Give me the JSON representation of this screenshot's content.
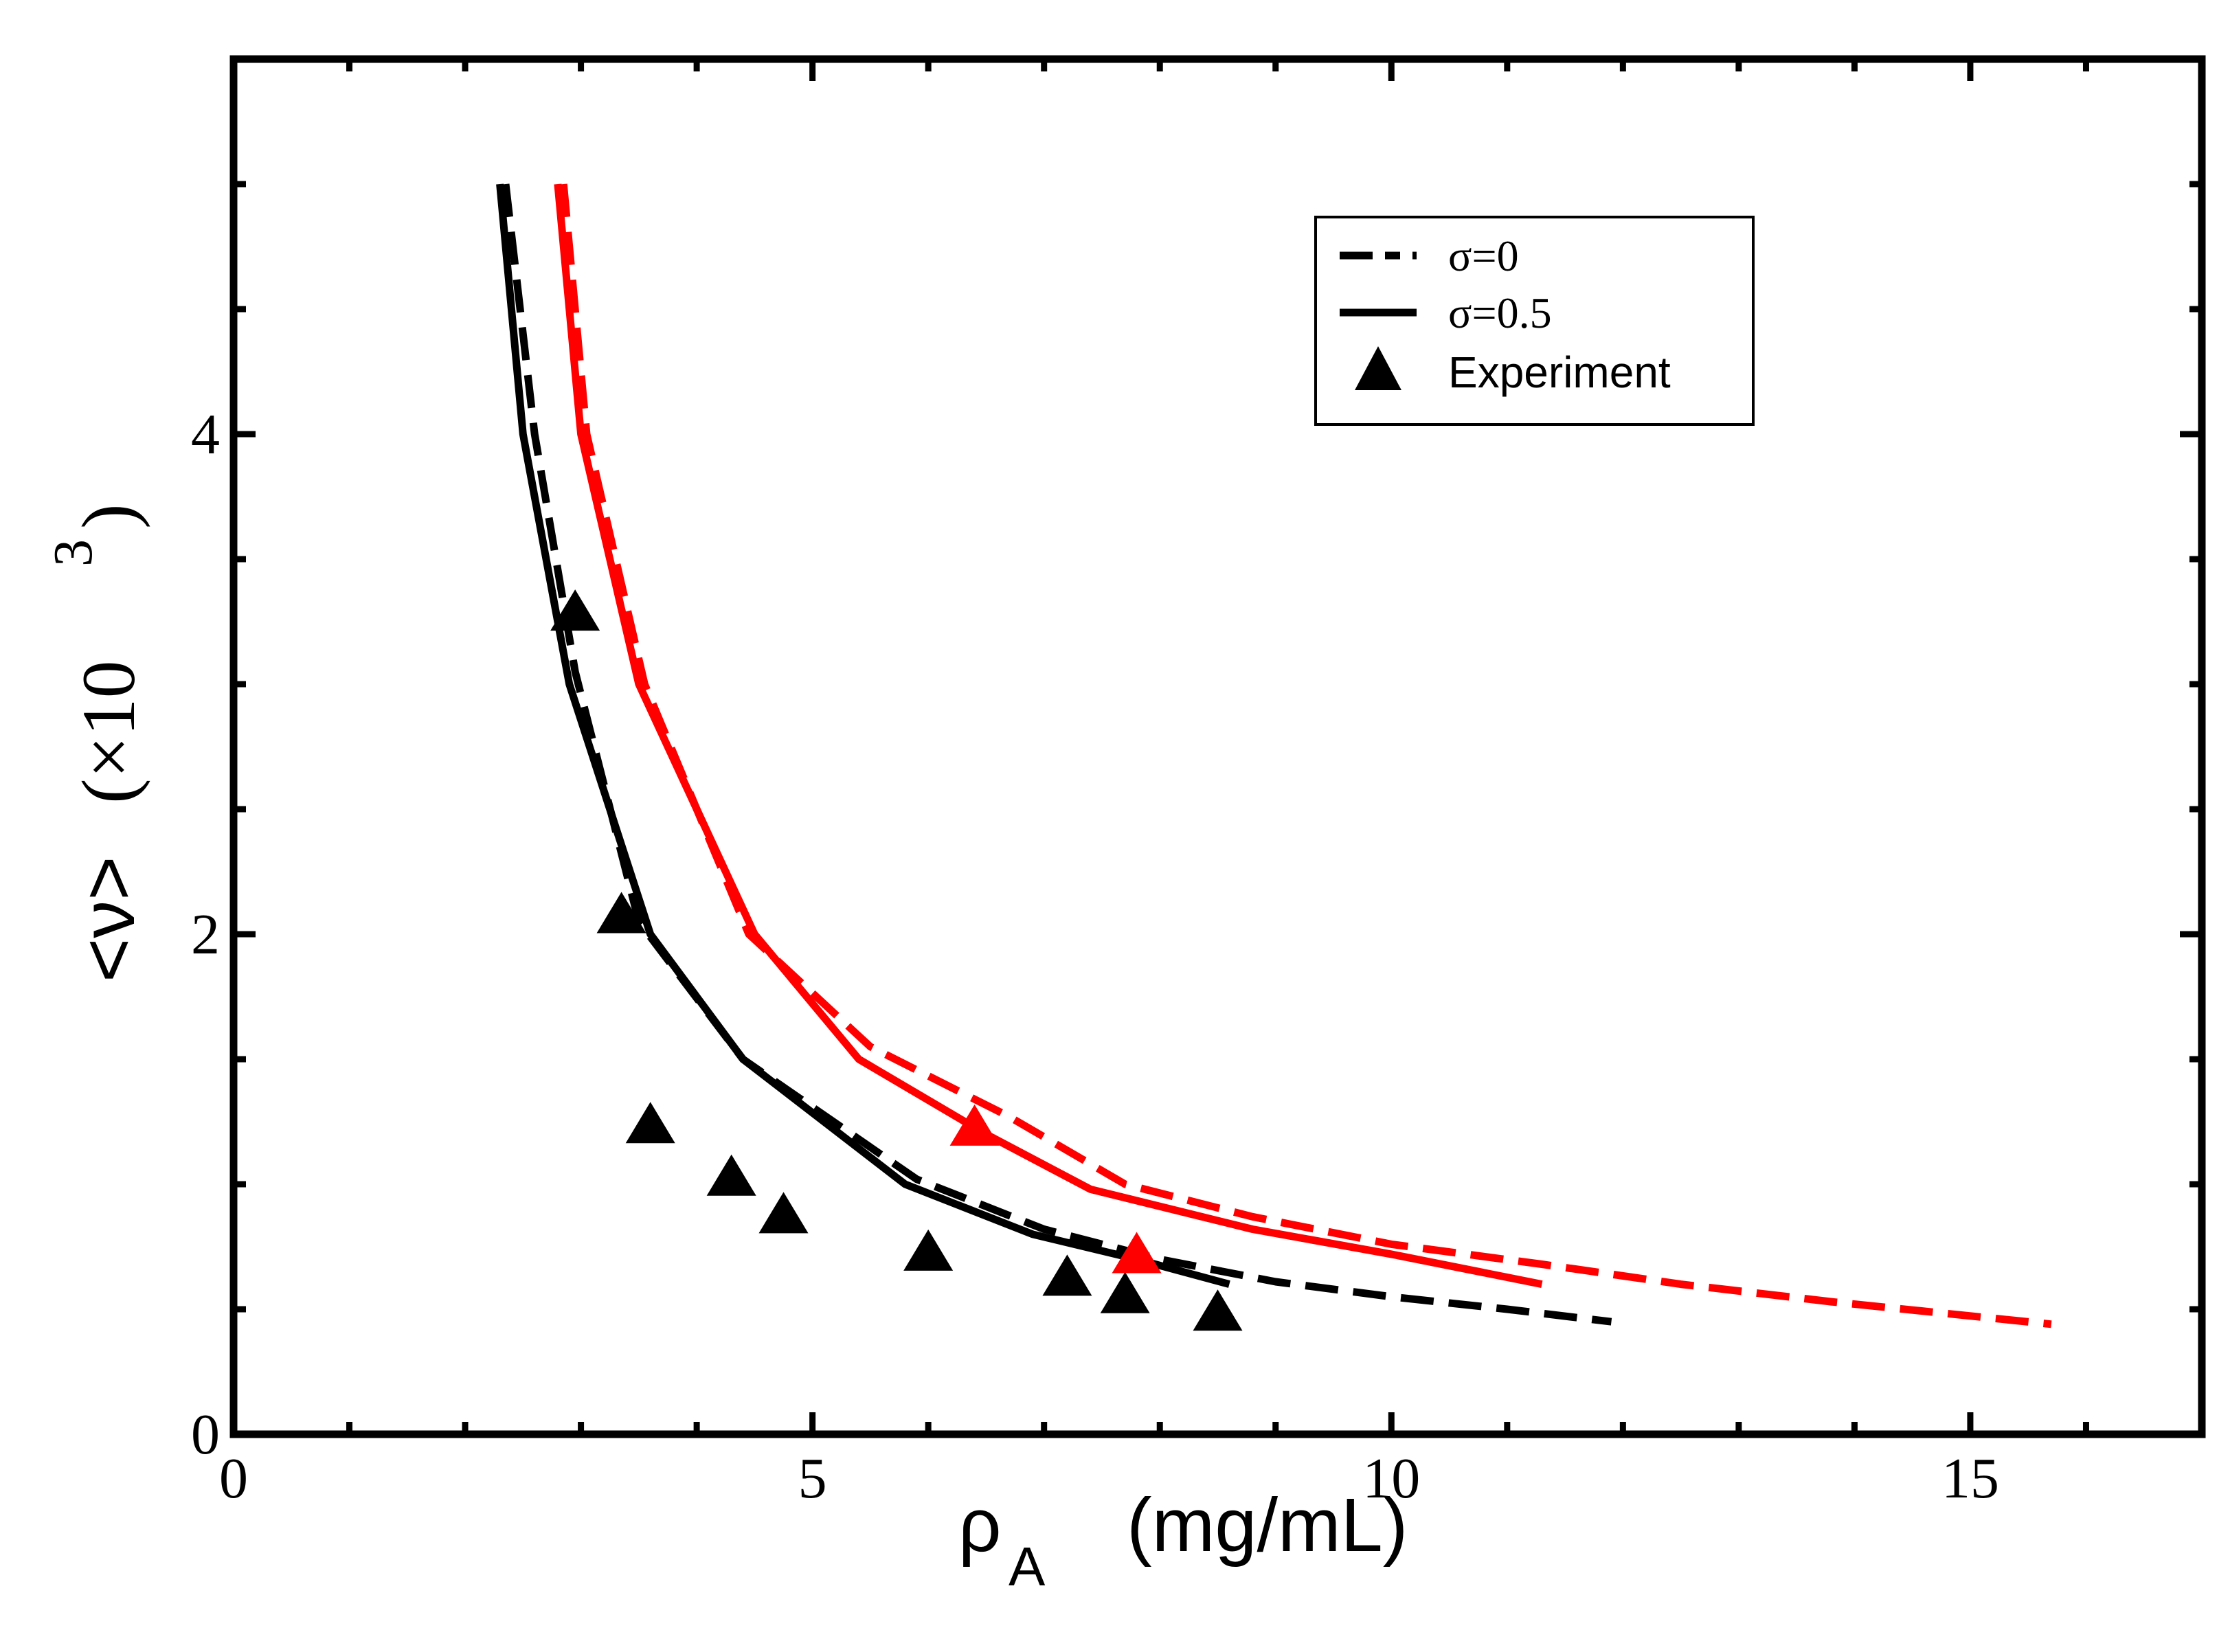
{
  "chart_data": {
    "type": "line",
    "title": "",
    "xlabel": {
      "symbol": "ρ",
      "subscript": "A",
      "units": "(mg/mL)"
    },
    "ylabel": {
      "symbol": "<ν>",
      "scale": "(×10",
      "scale_power": "3",
      "scale_close": ")"
    },
    "xlim": [
      0,
      17
    ],
    "ylim": [
      0,
      5.5
    ],
    "x_ticks": [
      0,
      5,
      10,
      15
    ],
    "x_tick_labels": [
      "0",
      "5",
      "10",
      "15"
    ],
    "y_ticks": [
      0,
      2,
      4
    ],
    "y_tick_labels": [
      "0",
      "2",
      "4"
    ],
    "x_minor_step": 1,
    "y_minor_step": 0.5,
    "grid": false,
    "legend": {
      "position": "top-right",
      "entries": [
        {
          "label": "σ=0",
          "style": "dashed"
        },
        {
          "label": "σ=0.5",
          "style": "solid"
        },
        {
          "label": "Experiment",
          "style": "triangle"
        }
      ]
    },
    "colors": {
      "black": "#000000",
      "red": "#ff0000"
    },
    "series": [
      {
        "name": "σ=0 (black)",
        "color": "#000000",
        "style": "dashed",
        "x": [
          2.35,
          2.6,
          2.95,
          3.5,
          4.4,
          5.9,
          7.0,
          8.0,
          9.0,
          10.0,
          11.0,
          11.9
        ],
        "y": [
          5.0,
          4.0,
          3.05,
          2.05,
          1.5,
          1.02,
          0.82,
          0.7,
          0.61,
          0.55,
          0.5,
          0.45
        ]
      },
      {
        "name": "σ=0.5 (black)",
        "color": "#000000",
        "style": "solid",
        "x": [
          2.3,
          2.5,
          2.9,
          3.6,
          4.4,
          5.8,
          6.9,
          7.8,
          8.6
        ],
        "y": [
          5.0,
          4.0,
          3.0,
          2.0,
          1.5,
          1.0,
          0.8,
          0.7,
          0.6
        ]
      },
      {
        "name": "σ=0 (red)",
        "color": "#ff0000",
        "style": "dashed",
        "x": [
          2.85,
          3.05,
          3.55,
          4.45,
          5.5,
          6.7,
          7.7,
          8.8,
          10.0,
          11.3,
          12.5,
          13.8,
          15.7
        ],
        "y": [
          5.0,
          4.0,
          3.0,
          2.0,
          1.55,
          1.27,
          1.0,
          0.87,
          0.76,
          0.68,
          0.6,
          0.53,
          0.44
        ]
      },
      {
        "name": "σ=0.5 (red)",
        "color": "#ff0000",
        "style": "solid",
        "x": [
          2.8,
          3.0,
          3.5,
          4.5,
          5.4,
          6.5,
          7.4,
          8.8,
          10.0,
          11.3
        ],
        "y": [
          5.0,
          4.0,
          3.0,
          2.0,
          1.5,
          1.2,
          0.98,
          0.82,
          0.72,
          0.6
        ]
      },
      {
        "name": "Experiment (black)",
        "color": "#000000",
        "style": "triangle",
        "x": [
          2.95,
          3.35,
          3.6,
          4.3,
          4.75,
          6.0,
          7.2,
          7.7,
          8.5
        ],
        "y": [
          3.28,
          2.07,
          1.23,
          1.02,
          0.87,
          0.72,
          0.62,
          0.55,
          0.48
        ]
      },
      {
        "name": "Experiment (red)",
        "color": "#ff0000",
        "style": "triangle",
        "x": [
          6.4,
          7.8
        ],
        "y": [
          1.22,
          0.71
        ]
      }
    ]
  }
}
